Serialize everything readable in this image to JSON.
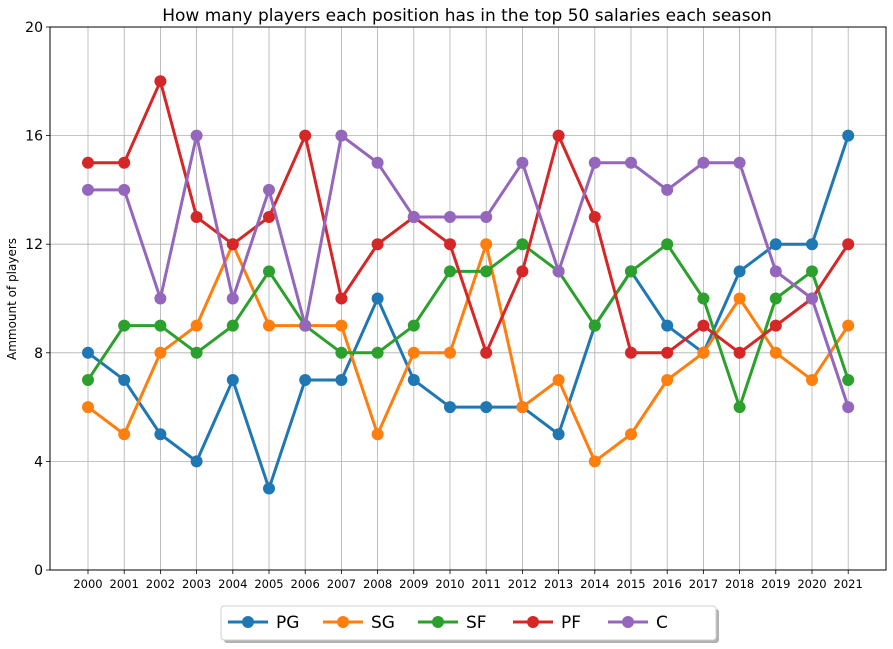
{
  "chart_data": {
    "type": "line",
    "title": "How many players each position has in the top 50 salaries each season",
    "xlabel": "",
    "ylabel": "Ammount of players",
    "ylim": [
      0,
      20
    ],
    "yticks": [
      0,
      4,
      8,
      12,
      16,
      20
    ],
    "categories": [
      "2000",
      "2001",
      "2002",
      "2003",
      "2004",
      "2005",
      "2006",
      "2007",
      "2008",
      "2009",
      "2010",
      "2011",
      "2012",
      "2013",
      "2014",
      "2015",
      "2016",
      "2017",
      "2018",
      "2019",
      "2020",
      "2021"
    ],
    "grid": true,
    "legend_position": "bottom-center",
    "series": [
      {
        "name": "PG",
        "color": "#1f77b4",
        "values": [
          8,
          7,
          5,
          4,
          7,
          3,
          7,
          7,
          10,
          7,
          6,
          6,
          6,
          5,
          9,
          11,
          9,
          8,
          11,
          12,
          12,
          16
        ]
      },
      {
        "name": "SG",
        "color": "#ff7f0e",
        "values": [
          6,
          5,
          8,
          9,
          12,
          9,
          9,
          9,
          5,
          8,
          8,
          12,
          6,
          7,
          4,
          5,
          7,
          8,
          10,
          8,
          7,
          9
        ]
      },
      {
        "name": "SF",
        "color": "#2ca02c",
        "values": [
          7,
          9,
          9,
          8,
          9,
          11,
          9,
          8,
          8,
          9,
          11,
          11,
          12,
          11,
          9,
          11,
          12,
          10,
          6,
          10,
          11,
          7
        ]
      },
      {
        "name": "PF",
        "color": "#d62728",
        "values": [
          15,
          15,
          18,
          13,
          12,
          13,
          16,
          10,
          12,
          13,
          12,
          8,
          11,
          16,
          13,
          8,
          8,
          9,
          8,
          9,
          10,
          12
        ]
      },
      {
        "name": "C",
        "color": "#9467bd",
        "values": [
          14,
          14,
          10,
          16,
          10,
          14,
          9,
          16,
          15,
          13,
          13,
          13,
          15,
          11,
          15,
          15,
          14,
          15,
          15,
          11,
          10,
          6
        ]
      }
    ]
  }
}
